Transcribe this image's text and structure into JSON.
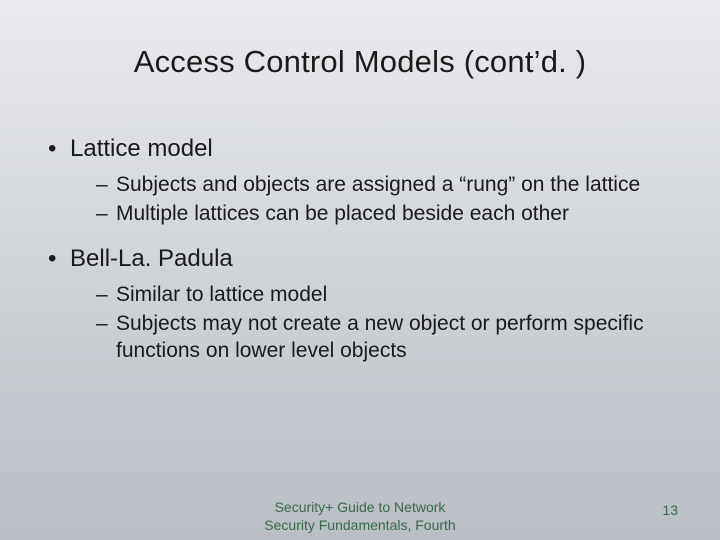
{
  "title": "Access Control Models (cont’d. )",
  "bullets": [
    {
      "label": "Lattice model",
      "sub": [
        "Subjects and objects are assigned a “rung” on the lattice",
        "Multiple lattices can be placed beside each other"
      ]
    },
    {
      "label": "Bell-La. Padula",
      "sub": [
        "Similar to lattice model",
        "Subjects may not create a new object or perform specific functions on lower level objects"
      ]
    }
  ],
  "footer": {
    "line1": "Security+ Guide to Network",
    "line2": "Security Fundamentals, Fourth"
  },
  "page_number": "13",
  "colors": {
    "text": "#1a1a1a",
    "footer": "#3a6a4a",
    "bg_top": "#e8eaed",
    "bg_bottom": "#b9bdc4"
  },
  "typography": {
    "title_fontsize": 31,
    "l1_fontsize": 24,
    "l2_fontsize": 21,
    "footer_fontsize": 14,
    "font_family": "Arial"
  }
}
